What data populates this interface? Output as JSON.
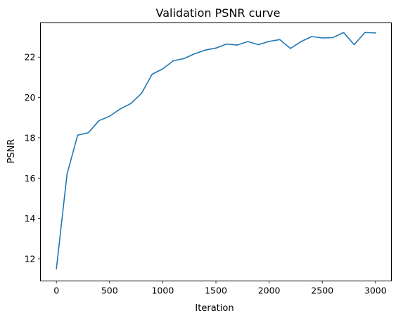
{
  "chart_data": {
    "type": "line",
    "title": "Validation PSNR curve",
    "xlabel": "Iteration",
    "ylabel": "PSNR",
    "xlim": [
      -150,
      3150
    ],
    "ylim": [
      10.9,
      23.7
    ],
    "x_ticks": [
      0,
      500,
      1000,
      1500,
      2000,
      2500,
      3000
    ],
    "y_ticks": [
      12,
      14,
      16,
      18,
      20,
      22
    ],
    "grid": false,
    "series": [
      {
        "color": "#1f77b4",
        "x": [
          0,
          100,
          200,
          300,
          400,
          500,
          600,
          700,
          800,
          900,
          1000,
          1100,
          1200,
          1300,
          1400,
          1500,
          1600,
          1700,
          1800,
          1900,
          2000,
          2100,
          2200,
          2300,
          2400,
          2500,
          2600,
          2700,
          2800,
          2900,
          3000
        ],
        "y": [
          11.5,
          16.2,
          18.13,
          18.25,
          18.85,
          19.07,
          19.43,
          19.7,
          20.2,
          21.15,
          21.42,
          21.82,
          21.93,
          22.17,
          22.35,
          22.45,
          22.65,
          22.6,
          22.77,
          22.62,
          22.78,
          22.87,
          22.43,
          22.77,
          23.02,
          22.95,
          22.97,
          23.22,
          22.62,
          23.22,
          23.2
        ]
      }
    ]
  }
}
